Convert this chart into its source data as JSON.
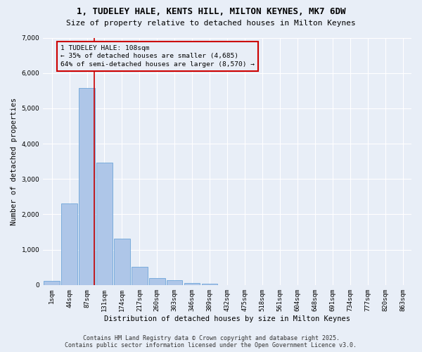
{
  "title_line1": "1, TUDELEY HALE, KENTS HILL, MILTON KEYNES, MK7 6DW",
  "title_line2": "Size of property relative to detached houses in Milton Keynes",
  "xlabel": "Distribution of detached houses by size in Milton Keynes",
  "ylabel": "Number of detached properties",
  "categories": [
    "1sqm",
    "44sqm",
    "87sqm",
    "131sqm",
    "174sqm",
    "217sqm",
    "260sqm",
    "303sqm",
    "346sqm",
    "389sqm",
    "432sqm",
    "475sqm",
    "518sqm",
    "561sqm",
    "604sqm",
    "648sqm",
    "691sqm",
    "734sqm",
    "777sqm",
    "820sqm",
    "863sqm"
  ],
  "values": [
    120,
    2300,
    5580,
    3460,
    1310,
    510,
    200,
    130,
    65,
    30,
    0,
    0,
    0,
    0,
    0,
    0,
    0,
    0,
    0,
    0,
    0
  ],
  "bar_color": "#aec6e8",
  "bar_edge_color": "#5b9bd5",
  "vline_x_index": 2,
  "vline_color": "#cc0000",
  "annotation_text": "1 TUDELEY HALE: 108sqm\n← 35% of detached houses are smaller (4,685)\n64% of semi-detached houses are larger (8,570) →",
  "annotation_box_color": "#cc0000",
  "annotation_text_color": "#000000",
  "ylim": [
    0,
    7000
  ],
  "yticks": [
    0,
    1000,
    2000,
    3000,
    4000,
    5000,
    6000,
    7000
  ],
  "footer_line1": "Contains HM Land Registry data © Crown copyright and database right 2025.",
  "footer_line2": "Contains public sector information licensed under the Open Government Licence v3.0.",
  "background_color": "#e8eef7",
  "grid_color": "#ffffff",
  "title_fontsize": 9,
  "subtitle_fontsize": 8,
  "axis_label_fontsize": 7.5,
  "tick_fontsize": 6.5,
  "footer_fontsize": 6,
  "bar_width": 0.9
}
